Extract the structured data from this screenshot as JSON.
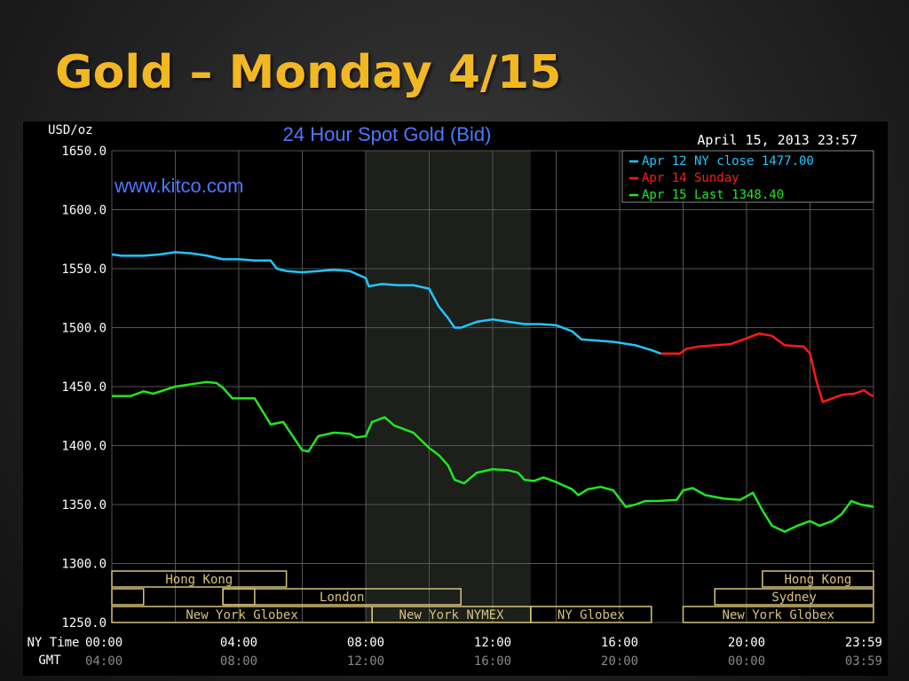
{
  "slide": {
    "title": "Gold – Monday 4/15"
  },
  "chart_data": {
    "type": "line",
    "title": "24 Hour Spot Gold (Bid)",
    "watermark": "www.kitco.com",
    "timestamp": "April 15, 2013 23:57",
    "ylabel": "USD/oz",
    "ylim": [
      1250,
      1650
    ],
    "yticks": [
      "1650.0",
      "1600.0",
      "1550.0",
      "1500.0",
      "1450.0",
      "1400.0",
      "1350.0",
      "1300.0",
      "1250.0"
    ],
    "x_label_ny": "NY Time",
    "x_label_gmt": "GMT",
    "xticks_ny": [
      "00:00",
      "04:00",
      "08:00",
      "12:00",
      "16:00",
      "20:00",
      "23:59"
    ],
    "xticks_gmt": [
      "04:00",
      "08:00",
      "12:00",
      "16:00",
      "20:00",
      "00:00",
      "03:59"
    ],
    "grid": true,
    "legend_position": "top-right",
    "colors": {
      "background": "#000000",
      "grid": "#555555",
      "axis_text": "#ffffff",
      "title": "#4d78ff",
      "session": "#d8c27a",
      "shade": "#1c1f1a"
    },
    "shaded_regions": [
      {
        "start_hour": 8.0,
        "end_hour": 13.2
      }
    ],
    "series": [
      {
        "name": "Apr 12 NY close 1477.00",
        "color": "#1ec8ff",
        "points": [
          [
            0,
            1562
          ],
          [
            0.3,
            1561
          ],
          [
            1,
            1561
          ],
          [
            1.5,
            1562
          ],
          [
            2,
            1564
          ],
          [
            2.5,
            1563
          ],
          [
            3,
            1561
          ],
          [
            3.5,
            1558
          ],
          [
            4,
            1558
          ],
          [
            4.5,
            1557
          ],
          [
            5,
            1557
          ],
          [
            5.2,
            1550
          ],
          [
            5.5,
            1548
          ],
          [
            6,
            1547
          ],
          [
            6.5,
            1548
          ],
          [
            7,
            1549
          ],
          [
            7.5,
            1548
          ],
          [
            8,
            1542
          ],
          [
            8.1,
            1535
          ],
          [
            8.5,
            1537
          ],
          [
            9,
            1536
          ],
          [
            9.5,
            1536
          ],
          [
            10,
            1533
          ],
          [
            10.3,
            1518
          ],
          [
            10.6,
            1508
          ],
          [
            10.8,
            1500
          ],
          [
            11,
            1500
          ],
          [
            11.5,
            1505
          ],
          [
            12,
            1507
          ],
          [
            12.5,
            1505
          ],
          [
            13,
            1503
          ],
          [
            13.5,
            1503
          ],
          [
            14,
            1502
          ],
          [
            14.5,
            1497
          ],
          [
            14.8,
            1490
          ],
          [
            15.3,
            1489
          ],
          [
            15.8,
            1488
          ],
          [
            16.5,
            1485
          ],
          [
            17,
            1481
          ],
          [
            17.3,
            1478
          ]
        ]
      },
      {
        "name": "Apr 14 Sunday",
        "color": "#ff1a1a",
        "points": [
          [
            17.3,
            1478
          ],
          [
            17.9,
            1478
          ],
          [
            18.1,
            1482
          ],
          [
            18.5,
            1484
          ],
          [
            19,
            1485
          ],
          [
            19.5,
            1486
          ],
          [
            20,
            1491
          ],
          [
            20.4,
            1495
          ],
          [
            20.8,
            1493
          ],
          [
            21,
            1489
          ],
          [
            21.2,
            1485
          ],
          [
            21.8,
            1484
          ],
          [
            22,
            1478
          ],
          [
            22.2,
            1455
          ],
          [
            22.4,
            1437
          ],
          [
            22.7,
            1440
          ],
          [
            23,
            1443
          ],
          [
            23.4,
            1444
          ],
          [
            23.7,
            1447
          ],
          [
            23.9,
            1443
          ],
          [
            24,
            1442
          ]
        ]
      },
      {
        "name": "Apr 15 Last 1348.40",
        "color": "#22e622",
        "points": [
          [
            0,
            1442
          ],
          [
            0.6,
            1442
          ],
          [
            1,
            1446
          ],
          [
            1.3,
            1444
          ],
          [
            2,
            1450
          ],
          [
            2.5,
            1452
          ],
          [
            3,
            1454
          ],
          [
            3.3,
            1453
          ],
          [
            3.5,
            1449
          ],
          [
            3.8,
            1440
          ],
          [
            4.5,
            1440
          ],
          [
            4.8,
            1427
          ],
          [
            5,
            1418
          ],
          [
            5.4,
            1420
          ],
          [
            5.7,
            1408
          ],
          [
            6,
            1396
          ],
          [
            6.2,
            1395
          ],
          [
            6.5,
            1408
          ],
          [
            7,
            1411
          ],
          [
            7.5,
            1410
          ],
          [
            7.7,
            1407
          ],
          [
            8,
            1408
          ],
          [
            8.2,
            1420
          ],
          [
            8.6,
            1424
          ],
          [
            8.9,
            1417
          ],
          [
            9.5,
            1411
          ],
          [
            10,
            1398
          ],
          [
            10.3,
            1392
          ],
          [
            10.6,
            1383
          ],
          [
            10.8,
            1371
          ],
          [
            11.1,
            1368
          ],
          [
            11.5,
            1377
          ],
          [
            12,
            1380
          ],
          [
            12.5,
            1379
          ],
          [
            12.8,
            1377
          ],
          [
            13,
            1371
          ],
          [
            13.3,
            1370
          ],
          [
            13.6,
            1373
          ],
          [
            14,
            1369
          ],
          [
            14.5,
            1363
          ],
          [
            14.7,
            1358
          ],
          [
            15,
            1363
          ],
          [
            15.4,
            1365
          ],
          [
            15.8,
            1362
          ],
          [
            16.2,
            1348
          ],
          [
            16.5,
            1350
          ],
          [
            16.8,
            1353
          ],
          [
            17.2,
            1353
          ],
          [
            17.8,
            1354
          ],
          [
            18,
            1362
          ],
          [
            18.3,
            1364
          ],
          [
            18.7,
            1358
          ],
          [
            19.3,
            1355
          ],
          [
            19.8,
            1354
          ],
          [
            20.2,
            1360
          ],
          [
            20.5,
            1345
          ],
          [
            20.8,
            1332
          ],
          [
            21.2,
            1327
          ],
          [
            21.6,
            1332
          ],
          [
            22,
            1336
          ],
          [
            22.3,
            1332
          ],
          [
            22.7,
            1336
          ],
          [
            23,
            1342
          ],
          [
            23.3,
            1353
          ],
          [
            23.6,
            1350
          ],
          [
            24,
            1348
          ]
        ]
      }
    ],
    "sessions": [
      {
        "label": "Hong Kong",
        "row": 0,
        "start": 0,
        "end": 5.5
      },
      {
        "label": "",
        "row": 1,
        "start": 0,
        "end": 1
      },
      {
        "label": "",
        "row": 1,
        "start": 3.5,
        "end": 4.5
      },
      {
        "label": "London",
        "row": 1,
        "start": 3.5,
        "end": 11
      },
      {
        "label": "New York Globex",
        "row": 2,
        "start": 0,
        "end": 8.2
      },
      {
        "label": "New York NYMEX",
        "row": 2,
        "start": 8.2,
        "end": 13.2
      },
      {
        "label": "NY Globex",
        "row": 2,
        "start": 13.2,
        "end": 17.0
      },
      {
        "label": "Hong Kong",
        "row": 0,
        "start": 20.5,
        "end": 24
      },
      {
        "label": "Sydney",
        "row": 1,
        "start": 19,
        "end": 24
      },
      {
        "label": "New York Globex",
        "row": 2,
        "start": 18,
        "end": 24
      }
    ]
  }
}
